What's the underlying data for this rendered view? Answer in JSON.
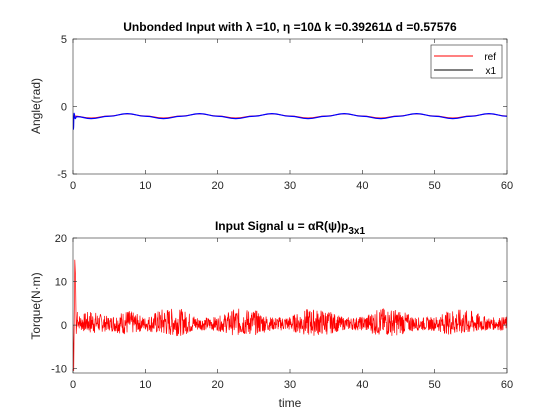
{
  "chart_data": [
    {
      "type": "line",
      "title": "Unbonded Input with λ =10, η =10∆ k =0.39261∆ d =0.57576",
      "xlabel": "",
      "ylabel": "Angle(rad)",
      "xlim": [
        0,
        60
      ],
      "ylim": [
        -5,
        5
      ],
      "xticks": [
        "0",
        "10",
        "20",
        "30",
        "40",
        "50",
        "60"
      ],
      "yticks": [
        "-5",
        "0",
        "5"
      ],
      "grid": false,
      "legend_position": "top-right",
      "series": [
        {
          "name": "ref",
          "color": "#ff0000",
          "x": [
            0,
            2.5,
            5,
            7.5,
            10,
            12.5,
            15,
            17.5,
            20,
            22.5,
            25,
            27.5,
            30,
            32.5,
            35,
            37.5,
            40,
            42.5,
            45,
            47.5,
            50,
            52.5,
            55,
            57.5,
            60
          ],
          "y": [
            -0.7,
            -0.85,
            -0.7,
            -0.55,
            -0.7,
            -0.85,
            -0.7,
            -0.55,
            -0.7,
            -0.85,
            -0.7,
            -0.55,
            -0.7,
            -0.85,
            -0.7,
            -0.55,
            -0.7,
            -0.85,
            -0.7,
            -0.55,
            -0.7,
            -0.85,
            -0.7,
            -0.55,
            -0.7
          ]
        },
        {
          "name": "x1",
          "color": "#0000ff",
          "x": [
            0,
            0.05,
            0.15,
            0.3,
            0.5,
            2.5,
            5,
            7.5,
            10,
            12.5,
            15,
            17.5,
            20,
            22.5,
            25,
            27.5,
            30,
            32.5,
            35,
            37.5,
            40,
            42.5,
            45,
            47.5,
            50,
            52.5,
            55,
            57.5,
            60
          ],
          "y": [
            -0.7,
            -1.7,
            -0.5,
            -0.9,
            -0.75,
            -0.9,
            -0.72,
            -0.53,
            -0.72,
            -0.9,
            -0.72,
            -0.53,
            -0.72,
            -0.9,
            -0.72,
            -0.53,
            -0.72,
            -0.9,
            -0.72,
            -0.53,
            -0.72,
            -0.9,
            -0.72,
            -0.53,
            -0.72,
            -0.9,
            -0.72,
            -0.53,
            -0.72
          ]
        }
      ]
    },
    {
      "type": "line",
      "title": "Input Signal u = αR(ψ)p",
      "title_subscript": "3x1",
      "xlabel": "time",
      "ylabel": "Torque(N·m)",
      "xlim": [
        0,
        60
      ],
      "ylim": [
        -11,
        20
      ],
      "xticks": [
        "0",
        "10",
        "20",
        "30",
        "40",
        "50",
        "60"
      ],
      "yticks": [
        "-10",
        "0",
        "10",
        "20"
      ],
      "grid": false,
      "series": [
        {
          "color": "#ff0000",
          "x": [
            0,
            0.1,
            0.25,
            0.35,
            0.45,
            0.6,
            1.0,
            2.5,
            5,
            7.5,
            10,
            12.5,
            15,
            17.5,
            20,
            22.5,
            25,
            27.5,
            30,
            32.5,
            35,
            37.5,
            40,
            42.5,
            45,
            47.5,
            50,
            52.5,
            55,
            57.5,
            60
          ],
          "y": [
            0,
            -10.5,
            15,
            11,
            -2,
            3,
            1.5,
            1.8,
            0.9,
            1.7,
            0.8,
            1.9,
            1.8,
            0.8,
            0.9,
            1.9,
            1.7,
            0.8,
            1.0,
            1.8,
            1.7,
            0.9,
            1.0,
            1.9,
            1.7,
            0.8,
            0.9,
            1.8,
            1.6,
            0.9,
            1.0
          ],
          "envelope": [
            1.2,
            2.8,
            1.6,
            3.0,
            1.5,
            3.3,
            3.1,
            1.5,
            1.6,
            3.2,
            3.0,
            1.5,
            1.7,
            3.2,
            2.9,
            1.4,
            1.6,
            3.3,
            3.0,
            1.5,
            1.6,
            3.1,
            2.8,
            1.4,
            1.6
          ]
        }
      ]
    }
  ]
}
